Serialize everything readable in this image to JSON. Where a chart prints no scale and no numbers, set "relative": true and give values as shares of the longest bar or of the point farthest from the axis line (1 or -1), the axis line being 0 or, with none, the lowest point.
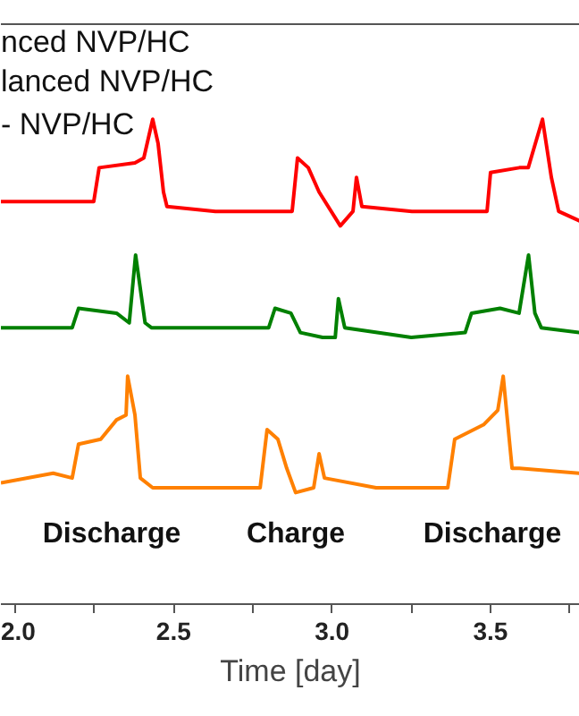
{
  "chart_data": {
    "type": "line",
    "relative": true,
    "xlabel": "Time [day]",
    "xlim": [
      1.955,
      3.782
    ],
    "xticks": [
      {
        "value": 2.0,
        "label": "2.0"
      },
      {
        "value": 2.25,
        "label": null
      },
      {
        "value": 2.5,
        "label": "2.5"
      },
      {
        "value": 2.75,
        "label": null
      },
      {
        "value": 3.0,
        "label": "3.0"
      },
      {
        "value": 3.25,
        "label": null
      },
      {
        "value": 3.5,
        "label": "3.5"
      },
      {
        "value": 3.75,
        "label": null
      }
    ],
    "tick_labels": "x",
    "grid": false,
    "line_style": "solid",
    "marker": "none",
    "annotations": [
      "nced NVP/HC",
      "lanced NVP/HC",
      "- NVP/HC",
      "Discharge",
      "Charge",
      "Discharge"
    ],
    "series": [
      {
        "color": "#ff0000",
        "x": [
          1.955,
          2.248,
          2.265,
          2.378,
          2.406,
          2.434,
          2.451,
          2.468,
          2.479,
          2.632,
          2.874,
          2.891,
          2.925,
          2.959,
          3.026,
          3.066,
          3.077,
          3.094,
          3.252,
          3.489,
          3.5,
          3.591,
          3.619,
          3.664,
          3.692,
          3.715,
          3.782
        ],
        "values": [
          0.83,
          0.83,
          0.9,
          0.91,
          0.92,
          1.0,
          0.95,
          0.85,
          0.82,
          0.81,
          0.81,
          0.92,
          0.9,
          0.85,
          0.78,
          0.81,
          0.88,
          0.82,
          0.81,
          0.81,
          0.89,
          0.9,
          0.9,
          1.0,
          0.88,
          0.81,
          0.79
        ]
      },
      {
        "color": "#008000",
        "x": [
          1.955,
          2.18,
          2.2,
          2.32,
          2.36,
          2.38,
          2.41,
          2.43,
          2.8,
          2.82,
          2.87,
          2.9,
          2.97,
          3.01,
          3.02,
          3.04,
          3.25,
          3.42,
          3.44,
          3.53,
          3.59,
          3.62,
          3.64,
          3.66,
          3.78
        ],
        "values": [
          0.57,
          0.57,
          0.61,
          0.6,
          0.58,
          0.72,
          0.58,
          0.57,
          0.57,
          0.61,
          0.6,
          0.56,
          0.55,
          0.55,
          0.63,
          0.57,
          0.55,
          0.56,
          0.6,
          0.61,
          0.6,
          0.72,
          0.6,
          0.57,
          0.56
        ]
      },
      {
        "color": "#ff8000",
        "x": [
          1.955,
          2.12,
          2.18,
          2.2,
          2.27,
          2.32,
          2.35,
          2.355,
          2.378,
          2.395,
          2.434,
          2.773,
          2.795,
          2.829,
          2.857,
          2.885,
          2.942,
          2.959,
          2.976,
          3.139,
          3.365,
          3.387,
          3.478,
          3.523,
          3.54,
          3.568,
          3.591,
          3.782
        ],
        "values": [
          0.25,
          0.27,
          0.26,
          0.33,
          0.34,
          0.38,
          0.39,
          0.47,
          0.39,
          0.26,
          0.24,
          0.24,
          0.36,
          0.34,
          0.28,
          0.23,
          0.24,
          0.31,
          0.26,
          0.24,
          0.24,
          0.34,
          0.37,
          0.4,
          0.47,
          0.28,
          0.28,
          0.27
        ]
      }
    ]
  }
}
